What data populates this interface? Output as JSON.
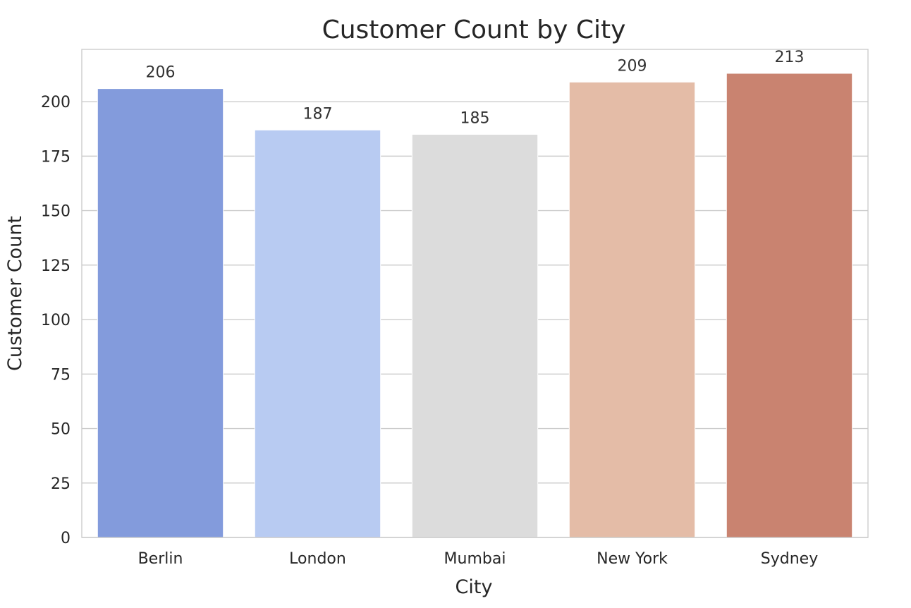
{
  "chart_data": {
    "type": "bar",
    "title": "Customer Count by City",
    "xlabel": "City",
    "ylabel": "Customer Count",
    "categories": [
      "Berlin",
      "London",
      "Mumbai",
      "New York",
      "Sydney"
    ],
    "values": [
      206,
      187,
      185,
      209,
      213
    ],
    "colors": [
      "#839bdc",
      "#b8cbf2",
      "#dcdcdc",
      "#e4bca7",
      "#c98370"
    ],
    "ylim": [
      0,
      224
    ],
    "yticks": [
      0,
      25,
      50,
      75,
      100,
      125,
      150,
      175,
      200
    ],
    "grid": "horizontal",
    "legend": "none"
  }
}
